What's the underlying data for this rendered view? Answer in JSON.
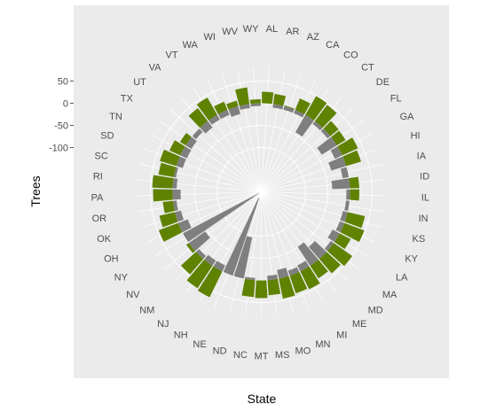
{
  "chart_data": {
    "type": "bar",
    "coord": "polar",
    "xlabel": "State",
    "ylabel": "Trees",
    "y_ticks": [
      50,
      0,
      -50,
      -100
    ],
    "ylim": [
      -200,
      80
    ],
    "categories": [
      "AL",
      "AR",
      "AZ",
      "CA",
      "CO",
      "CT",
      "DE",
      "FL",
      "GA",
      "HI",
      "IA",
      "ID",
      "IL",
      "IN",
      "KS",
      "KY",
      "LA",
      "MA",
      "MD",
      "ME",
      "MI",
      "MN",
      "MO",
      "MS",
      "MT",
      "NC",
      "ND",
      "NE",
      "NH",
      "NJ",
      "NM",
      "NV",
      "NY",
      "OH",
      "OK",
      "OR",
      "PA",
      "RI",
      "SC",
      "SD",
      "TN",
      "TX",
      "UT",
      "VA",
      "VT",
      "WA",
      "WI",
      "WV",
      "WY"
    ],
    "series": [
      {
        "values": [
          26,
          23,
          2,
          28,
          49,
          46,
          24,
          23,
          39,
          35,
          0,
          21,
          21,
          0,
          40,
          48,
          28,
          51,
          43,
          34,
          45,
          42,
          46,
          34,
          40,
          38,
          0,
          0,
          65,
          61,
          46,
          7,
          0,
          47,
          36,
          23,
          44,
          46,
          35,
          39,
          27,
          15,
          0,
          37,
          45,
          20,
          13,
          38,
          9
        ]
      },
      {
        "values": [
          0,
          -8,
          -8,
          -8,
          -45,
          -8,
          -8,
          -40,
          -18,
          -35,
          -14,
          -40,
          -8,
          -8,
          -11,
          -11,
          -18,
          -8,
          -36,
          -51,
          -15,
          -12,
          -20,
          -10,
          0,
          -5,
          -95,
          -185,
          -15,
          -14,
          -9,
          -45,
          -195,
          -23,
          -14,
          -8,
          -18,
          -9,
          -5,
          -15,
          -16,
          -15,
          -11,
          -18,
          -12,
          -12,
          -18,
          -9,
          -6
        ]
      }
    ],
    "colors": {
      "positive": "#5f8200",
      "negative": "#7f7f7f"
    },
    "panel_color": "#ebebeb",
    "grid_color": "#ffffff",
    "grid": true,
    "legend": "none"
  }
}
